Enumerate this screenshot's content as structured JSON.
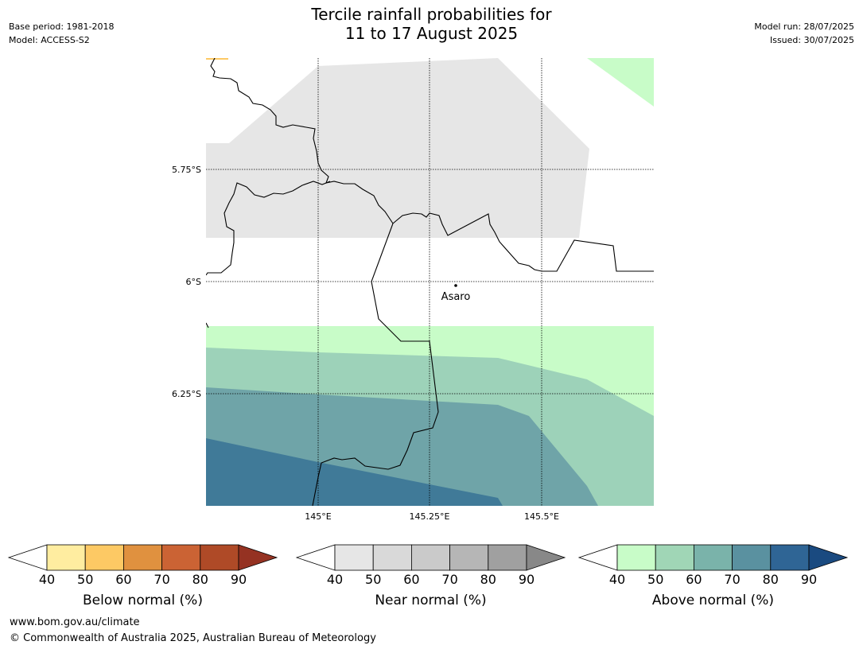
{
  "header": {
    "title_line1": "Tercile rainfall probabilities for",
    "title_line2": "11 to 17 August 2025",
    "base_period": "Base period: 1981-2018",
    "model": "Model: ACCESS-S2",
    "model_run": "Model run: 28/07/2025",
    "issued": "Issued: 30/07/2025"
  },
  "map": {
    "lat_labels": [
      "5.75°S",
      "6°S",
      "6.25°S"
    ],
    "lon_labels": [
      "145°E",
      "145.25°E",
      "145.5°E"
    ],
    "place": "Asaro"
  },
  "colorbars": [
    {
      "label": "Below normal (%)",
      "ticks": [
        "40",
        "50",
        "60",
        "70",
        "80",
        "90"
      ],
      "colors": [
        "#ffeda0",
        "#fdc964",
        "#e0913f",
        "#cb6334",
        "#af4a27",
        "#953222"
      ]
    },
    {
      "label": "Near normal (%)",
      "ticks": [
        "40",
        "50",
        "60",
        "70",
        "80",
        "90"
      ],
      "colors": [
        "#e6e6e6",
        "#d9d9d9",
        "#cacaca",
        "#b6b6b6",
        "#a0a0a0",
        "#888888"
      ]
    },
    {
      "label": "Above normal (%)",
      "ticks": [
        "40",
        "50",
        "60",
        "70",
        "80",
        "90"
      ],
      "colors": [
        "#c8fcc8",
        "#a0d6b6",
        "#7ab3aa",
        "#5a91a0",
        "#2f6595",
        "#1a4a80"
      ]
    }
  ],
  "footer": {
    "url": "www.bom.gov.au/climate",
    "copyright": "© Commonwealth of Australia 2025, Australian Bureau of Meteorology"
  }
}
